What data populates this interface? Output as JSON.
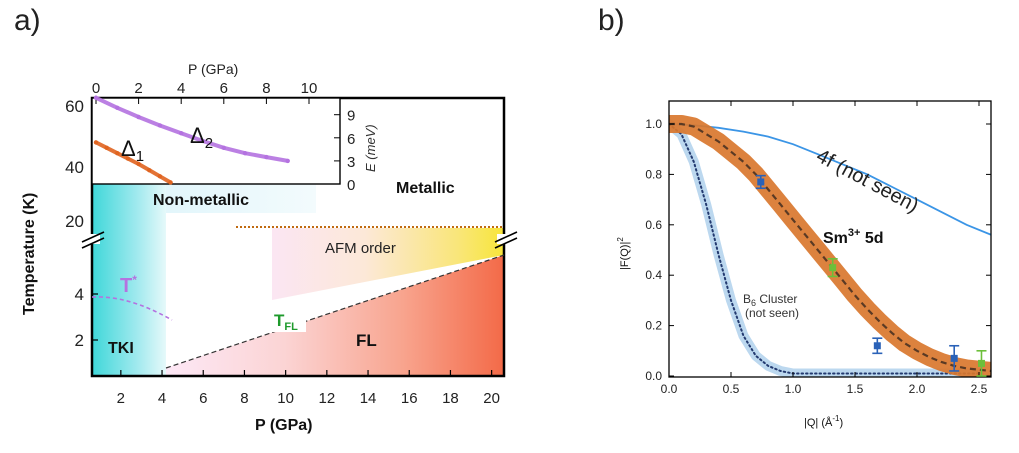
{
  "panels": {
    "a_label": "a)",
    "b_label": "b)"
  },
  "colors": {
    "tki_cyan": "#3fd7d9",
    "fl_red": "#f57050",
    "afm_yellow": "#f8e63a",
    "purple": "#b472e0",
    "orange": "#e06420",
    "green": "#1e9a2c",
    "blue_points": "#2a62b8",
    "green_points": "#6cbf3a",
    "band_orange": "#d9772e",
    "cluster_band": "#bcd8ef",
    "line_4f": "#3b95e6"
  },
  "chart_data": [
    {
      "id": "panel-a",
      "type": "area",
      "xlabel": "P (GPa)",
      "ylabel": "Temperature (K)",
      "x_ticks": [
        "2",
        "4",
        "6",
        "8",
        "10",
        "12",
        "14",
        "16",
        "18",
        "20"
      ],
      "y_ticks_low": [
        "2",
        "4"
      ],
      "y_ticks_high": [
        "20",
        "40",
        "60"
      ],
      "region_labels": {
        "non_metallic": "Non-metallic",
        "metallic": "Metallic",
        "afm": "AFM order",
        "tki": "TKI",
        "fl": "FL",
        "t_star": "T",
        "t_star_sup": "*",
        "t_fl": "T",
        "t_fl_sub": "FL"
      },
      "tki_boundary_gpa": 4.2,
      "metallic_afm_onset_gpa": 7.7,
      "afm_temperature_K": 19,
      "t_star_curve": {
        "P": [
          0.5,
          1.5,
          2.5,
          3.5,
          4.2
        ],
        "T": [
          4.0,
          3.95,
          3.7,
          3.3,
          2.95
        ]
      },
      "t_fl_line": {
        "P": [
          4.2,
          20.5
        ],
        "T": [
          0.8,
          6.0
        ]
      },
      "inset": {
        "xlabel": "P (GPa)",
        "ylabel": "E (meV)",
        "x_ticks": [
          "0",
          "2",
          "4",
          "6",
          "8",
          "10"
        ],
        "y_ticks": [
          "0",
          "3",
          "6",
          "9"
        ],
        "xlim": [
          0,
          11
        ],
        "ylim": [
          0,
          12
        ],
        "delta1_label": "Δ",
        "delta1_sub": "1",
        "delta2_label": "Δ",
        "delta2_sub": "2",
        "series": [
          {
            "name": "Δ1",
            "P": [
              0,
              0.5,
              1,
              1.5,
              2,
              2.5,
              3,
              3.5
            ],
            "E": [
              5.4,
              4.7,
              4.0,
              3.3,
              2.6,
              1.8,
              1.0,
              0.2
            ]
          },
          {
            "name": "Δ2",
            "P": [
              0,
              1,
              2,
              3,
              4,
              5,
              6,
              7,
              8,
              9
            ],
            "E": [
              11.2,
              9.9,
              8.7,
              7.6,
              6.6,
              5.6,
              4.7,
              4.0,
              3.5,
              3.0
            ]
          }
        ]
      }
    },
    {
      "id": "panel-b",
      "type": "line",
      "xlabel": "|Q| (Å",
      "xlabel_sup": "-1",
      "xlabel_close": ")",
      "ylabel": "|F(Q)|",
      "ylabel_sup": "2",
      "xlim": [
        0,
        2.6
      ],
      "ylim": [
        0,
        1.0
      ],
      "x_ticks": [
        {
          "value": 0.0,
          "label": "0.0"
        },
        {
          "value": 0.5,
          "label": "0.5"
        },
        {
          "value": 1.0,
          "label": "1.0"
        },
        {
          "value": 1.5,
          "label": "1.5"
        },
        {
          "value": 2.0,
          "label": "2.0"
        },
        {
          "value": 2.5,
          "label": "2.5"
        }
      ],
      "y_ticks": [
        {
          "value": 0.0,
          "label": "0.0"
        },
        {
          "value": 0.2,
          "label": "0.2"
        },
        {
          "value": 0.4,
          "label": "0.4"
        },
        {
          "value": 0.6,
          "label": "0.6"
        },
        {
          "value": 0.8,
          "label": "0.8"
        },
        {
          "value": 1.0,
          "label": "1.0"
        }
      ],
      "annotations": {
        "f4": "4f (not seen)",
        "sm": "Sm",
        "sm_sup": "3+",
        "sm_tail": " 5d",
        "cluster_line1_pre": "B",
        "cluster_line1_sub": "6",
        "cluster_line1_post": " Cluster",
        "cluster_line2": "(not seen)"
      },
      "series": [
        {
          "name": "4f (not seen)",
          "x": [
            0,
            0.2,
            0.4,
            0.6,
            0.8,
            1.0,
            1.2,
            1.4,
            1.6,
            1.8,
            2.0,
            2.2,
            2.4,
            2.6
          ],
          "y": [
            1.0,
            0.995,
            0.985,
            0.97,
            0.95,
            0.92,
            0.88,
            0.84,
            0.8,
            0.75,
            0.7,
            0.65,
            0.6,
            0.56
          ]
        },
        {
          "name": "Sm3+ 5d",
          "x": [
            0,
            0.1,
            0.2,
            0.3,
            0.4,
            0.5,
            0.6,
            0.7,
            0.8,
            0.9,
            1.0,
            1.1,
            1.2,
            1.3,
            1.4,
            1.5,
            1.6,
            1.7,
            1.8,
            1.9,
            2.0,
            2.1,
            2.2,
            2.3,
            2.4,
            2.5,
            2.6
          ],
          "y": [
            1.0,
            1.0,
            0.99,
            0.96,
            0.93,
            0.89,
            0.85,
            0.8,
            0.74,
            0.68,
            0.62,
            0.56,
            0.5,
            0.44,
            0.38,
            0.32,
            0.265,
            0.215,
            0.17,
            0.13,
            0.1,
            0.075,
            0.055,
            0.04,
            0.03,
            0.025,
            0.02
          ]
        },
        {
          "name": "B6 Cluster (not seen)",
          "x": [
            0,
            0.1,
            0.2,
            0.3,
            0.4,
            0.5,
            0.6,
            0.7,
            0.8,
            0.9,
            1.0,
            1.2,
            1.5,
            2.0,
            2.5
          ],
          "y": [
            1.0,
            0.96,
            0.85,
            0.68,
            0.48,
            0.3,
            0.16,
            0.08,
            0.04,
            0.02,
            0.01,
            0.01,
            0.01,
            0.01,
            0.01
          ]
        }
      ],
      "data_points": [
        {
          "x": 0.74,
          "y": 0.77,
          "err": 0.025,
          "color": "blue"
        },
        {
          "x": 1.32,
          "y": 0.43,
          "err": 0.035,
          "color": "green"
        },
        {
          "x": 1.68,
          "y": 0.12,
          "err": 0.03,
          "color": "blue"
        },
        {
          "x": 2.3,
          "y": 0.07,
          "err": 0.05,
          "color": "blue"
        },
        {
          "x": 2.52,
          "y": 0.05,
          "err": 0.05,
          "color": "green"
        }
      ]
    }
  ]
}
